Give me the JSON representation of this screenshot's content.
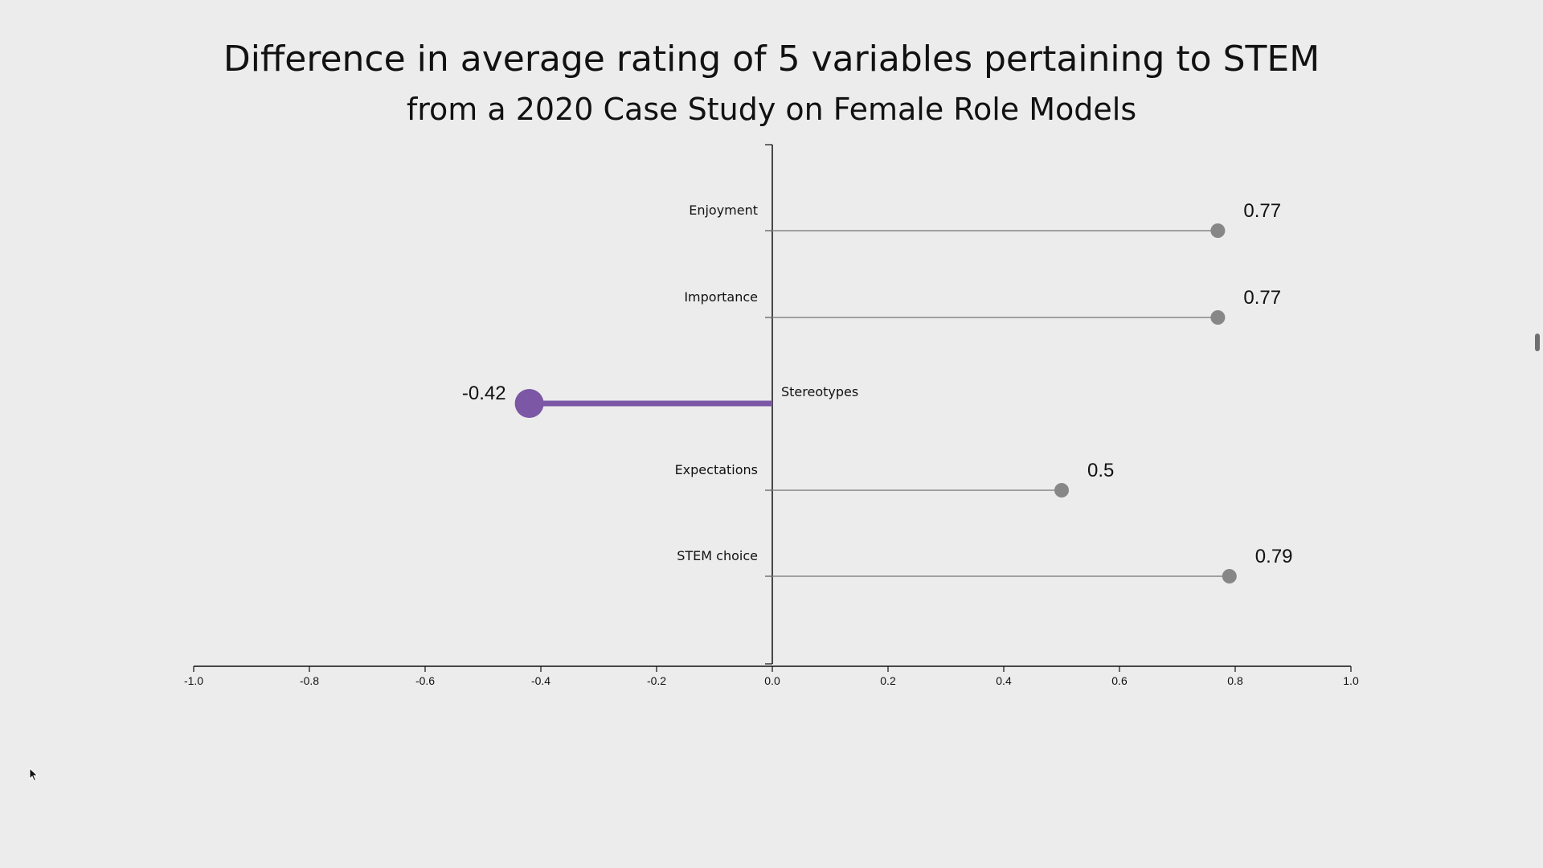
{
  "chart_data": {
    "type": "lollipop",
    "title": "Difference in average rating of 5 variables pertaining to STEM",
    "subtitle": "from a 2020 Case Study on Female Role Models",
    "categories": [
      "Enjoyment",
      "Importance",
      "Stereotypes",
      "Expectations",
      "STEM choice"
    ],
    "values": [
      0.77,
      0.77,
      -0.42,
      0.5,
      0.79
    ],
    "value_labels": [
      "0.77",
      "0.77",
      "-0.42",
      "0.5",
      "0.79"
    ],
    "highlighted": "Stereotypes",
    "xlim": [
      -1.0,
      1.0
    ],
    "xticks": [
      "-1.0",
      "-0.8",
      "-0.6",
      "-0.4",
      "-0.2",
      "0.0",
      "0.2",
      "0.4",
      "0.6",
      "0.8",
      "1.0"
    ],
    "xlabel": "",
    "ylabel": "",
    "grid": false,
    "colors": {
      "default": "#878787",
      "highlight": "#7b57a6"
    }
  }
}
